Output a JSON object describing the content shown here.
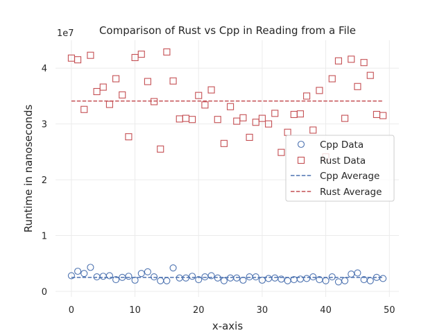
{
  "chart_data": {
    "type": "scatter",
    "title": "Comparison of Rust vs Cpp in Reading from a File",
    "xlabel": "x-axis",
    "ylabel": "Runtime in nanoseconds",
    "y_offset_label": "1e7",
    "xlim": [
      -2.5,
      51.5
    ],
    "ylim": [
      -0.1,
      4.5
    ],
    "y_scale_factor": 10000000,
    "x_ticks": [
      0,
      10,
      20,
      30,
      40,
      50
    ],
    "y_ticks": [
      0,
      1,
      2,
      3,
      4
    ],
    "grid": true,
    "legend_position": "center-right",
    "x": [
      0,
      1,
      2,
      3,
      4,
      5,
      6,
      7,
      8,
      9,
      10,
      11,
      12,
      13,
      14,
      15,
      16,
      17,
      18,
      19,
      20,
      21,
      22,
      23,
      24,
      25,
      26,
      27,
      28,
      29,
      30,
      31,
      32,
      33,
      34,
      35,
      36,
      37,
      38,
      39,
      40,
      41,
      42,
      43,
      44,
      45,
      46,
      47,
      48,
      49
    ],
    "series": [
      {
        "name": "Cpp Data",
        "kind": "scatter",
        "marker": "circle",
        "color": "#4c72b0",
        "values": [
          0.28,
          0.36,
          0.32,
          0.43,
          0.26,
          0.27,
          0.28,
          0.21,
          0.25,
          0.27,
          0.2,
          0.32,
          0.35,
          0.26,
          0.19,
          0.19,
          0.42,
          0.24,
          0.24,
          0.27,
          0.21,
          0.26,
          0.28,
          0.24,
          0.19,
          0.24,
          0.24,
          0.2,
          0.26,
          0.26,
          0.2,
          0.23,
          0.24,
          0.22,
          0.19,
          0.21,
          0.22,
          0.23,
          0.26,
          0.21,
          0.19,
          0.26,
          0.17,
          0.19,
          0.31,
          0.33,
          0.21,
          0.19,
          0.25,
          0.23
        ]
      },
      {
        "name": "Rust Data",
        "kind": "scatter",
        "marker": "square",
        "color": "#c44e52",
        "values": [
          4.18,
          4.15,
          3.26,
          4.23,
          3.58,
          3.66,
          3.35,
          3.81,
          3.52,
          2.77,
          4.19,
          4.25,
          3.76,
          3.4,
          2.55,
          4.29,
          3.77,
          3.09,
          3.1,
          3.08,
          3.51,
          3.34,
          3.61,
          3.08,
          2.65,
          3.31,
          3.05,
          3.11,
          2.76,
          3.03,
          3.1,
          3.0,
          3.19,
          2.49,
          2.85,
          3.17,
          3.18,
          3.5,
          2.89,
          3.6,
          2.41,
          3.81,
          4.13,
          3.1,
          4.16,
          3.67,
          4.1,
          3.87,
          3.17,
          3.15
        ]
      },
      {
        "name": "Cpp Average",
        "kind": "line",
        "style": "dashed",
        "color": "#4c72b0",
        "value": 0.25
      },
      {
        "name": "Rust Average",
        "kind": "line",
        "style": "dashed",
        "color": "#c44e52",
        "value": 3.41
      }
    ]
  }
}
